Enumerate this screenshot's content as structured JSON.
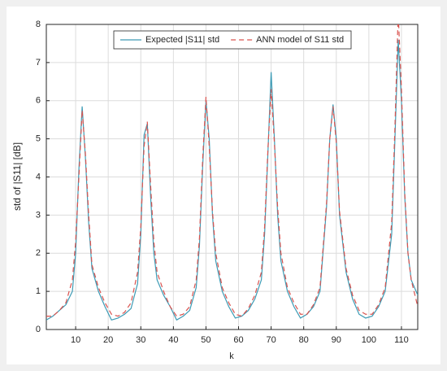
{
  "chart_data": {
    "type": "line",
    "xlabel": "k",
    "ylabel": "std of |S11| [dB]",
    "x": [
      1,
      3,
      5,
      7,
      9,
      10,
      11,
      12,
      13,
      14,
      15,
      17,
      19,
      21,
      23,
      25,
      27,
      29,
      30,
      31,
      32,
      33,
      34,
      35,
      37,
      39,
      41,
      43,
      45,
      47,
      48,
      49,
      50,
      51,
      52,
      53,
      55,
      57,
      59,
      61,
      63,
      65,
      67,
      68,
      69,
      70,
      71,
      72,
      73,
      75,
      77,
      79,
      81,
      83,
      85,
      87,
      88,
      89,
      90,
      91,
      93,
      95,
      97,
      99,
      101,
      103,
      105,
      107,
      108,
      109,
      110,
      111,
      112,
      113,
      115
    ],
    "series": [
      {
        "name": "Expected |S11| std",
        "color": "#3d9bb5",
        "dash": false,
        "values": [
          0.25,
          0.35,
          0.5,
          0.65,
          1.0,
          2.0,
          4.2,
          5.85,
          4.5,
          2.8,
          1.6,
          1.0,
          0.6,
          0.25,
          0.3,
          0.4,
          0.55,
          1.2,
          2.5,
          5.1,
          5.4,
          3.5,
          2.0,
          1.3,
          0.9,
          0.6,
          0.25,
          0.35,
          0.5,
          1.1,
          2.2,
          4.3,
          6.0,
          5.0,
          3.0,
          1.8,
          1.0,
          0.6,
          0.3,
          0.35,
          0.5,
          0.8,
          1.3,
          2.5,
          4.6,
          6.75,
          5.0,
          3.0,
          1.8,
          1.0,
          0.6,
          0.3,
          0.4,
          0.6,
          1.0,
          3.2,
          5.0,
          5.9,
          5.0,
          3.0,
          1.5,
          0.8,
          0.4,
          0.3,
          0.35,
          0.6,
          1.0,
          2.5,
          5.0,
          7.6,
          6.0,
          3.5,
          2.0,
          1.3,
          0.9
        ]
      },
      {
        "name": "ANN model of S11 std",
        "color": "#d9534f",
        "dash": true,
        "values": [
          0.35,
          0.35,
          0.5,
          0.7,
          1.3,
          2.3,
          4.0,
          5.75,
          4.6,
          3.0,
          1.7,
          1.1,
          0.7,
          0.4,
          0.35,
          0.45,
          0.7,
          1.5,
          2.7,
          4.8,
          5.45,
          3.8,
          2.3,
          1.5,
          1.0,
          0.6,
          0.35,
          0.4,
          0.6,
          1.3,
          2.4,
          4.5,
          6.1,
          4.8,
          3.1,
          2.0,
          1.1,
          0.7,
          0.4,
          0.35,
          0.55,
          0.9,
          1.5,
          2.7,
          4.7,
          6.3,
          4.9,
          3.2,
          2.0,
          1.1,
          0.7,
          0.4,
          0.4,
          0.65,
          1.1,
          3.3,
          5.0,
          5.85,
          4.9,
          3.1,
          1.6,
          0.9,
          0.5,
          0.4,
          0.4,
          0.65,
          1.1,
          2.8,
          5.3,
          8.3,
          6.3,
          3.6,
          2.0,
          1.3,
          0.6
        ]
      }
    ],
    "xlim": [
      1,
      115
    ],
    "ylim": [
      0,
      8
    ],
    "xticks": [
      10,
      20,
      30,
      40,
      50,
      60,
      70,
      80,
      90,
      100,
      110
    ],
    "yticks": [
      0,
      1,
      2,
      3,
      4,
      5,
      6,
      7,
      8
    ],
    "grid": true,
    "legend": "top"
  }
}
